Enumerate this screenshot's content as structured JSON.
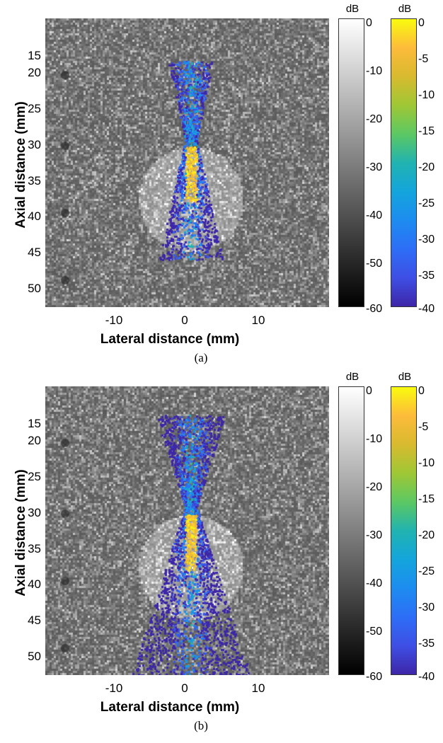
{
  "panels": [
    {
      "caption": "(a)",
      "ylabel": "Axial distance (mm)",
      "xlabel": "Lateral distance (mm)",
      "yticks": [
        "15",
        "20",
        "25",
        "30",
        "35",
        "40",
        "45",
        "50"
      ],
      "xticks": [
        "-10",
        "0",
        "10"
      ],
      "colorbar_gray": {
        "unit": "dB",
        "ticks": [
          "0",
          "-10",
          "-20",
          "-30",
          "-40",
          "-50",
          "-60"
        ]
      },
      "colorbar_color": {
        "unit": "dB",
        "ticks": [
          "0",
          "-5",
          "-10",
          "-15",
          "-20",
          "-25",
          "-30",
          "-35",
          "-40"
        ]
      }
    },
    {
      "caption": "(b)",
      "ylabel": "Axial distance (mm)",
      "xlabel": "Lateral distance (mm)",
      "yticks": [
        "15",
        "20",
        "25",
        "30",
        "35",
        "40",
        "45",
        "50"
      ],
      "xticks": [
        "-10",
        "0",
        "10"
      ],
      "colorbar_gray": {
        "unit": "dB",
        "ticks": [
          "0",
          "-10",
          "-20",
          "-30",
          "-40",
          "-50",
          "-60"
        ]
      },
      "colorbar_color": {
        "unit": "dB",
        "ticks": [
          "0",
          "-5",
          "-10",
          "-15",
          "-20",
          "-25",
          "-30",
          "-35",
          "-40"
        ]
      }
    }
  ],
  "colors": {
    "gray_background": "#6f6f6f",
    "overlay_low": "#3e26a8",
    "overlay_high": "#f9fb0e"
  }
}
